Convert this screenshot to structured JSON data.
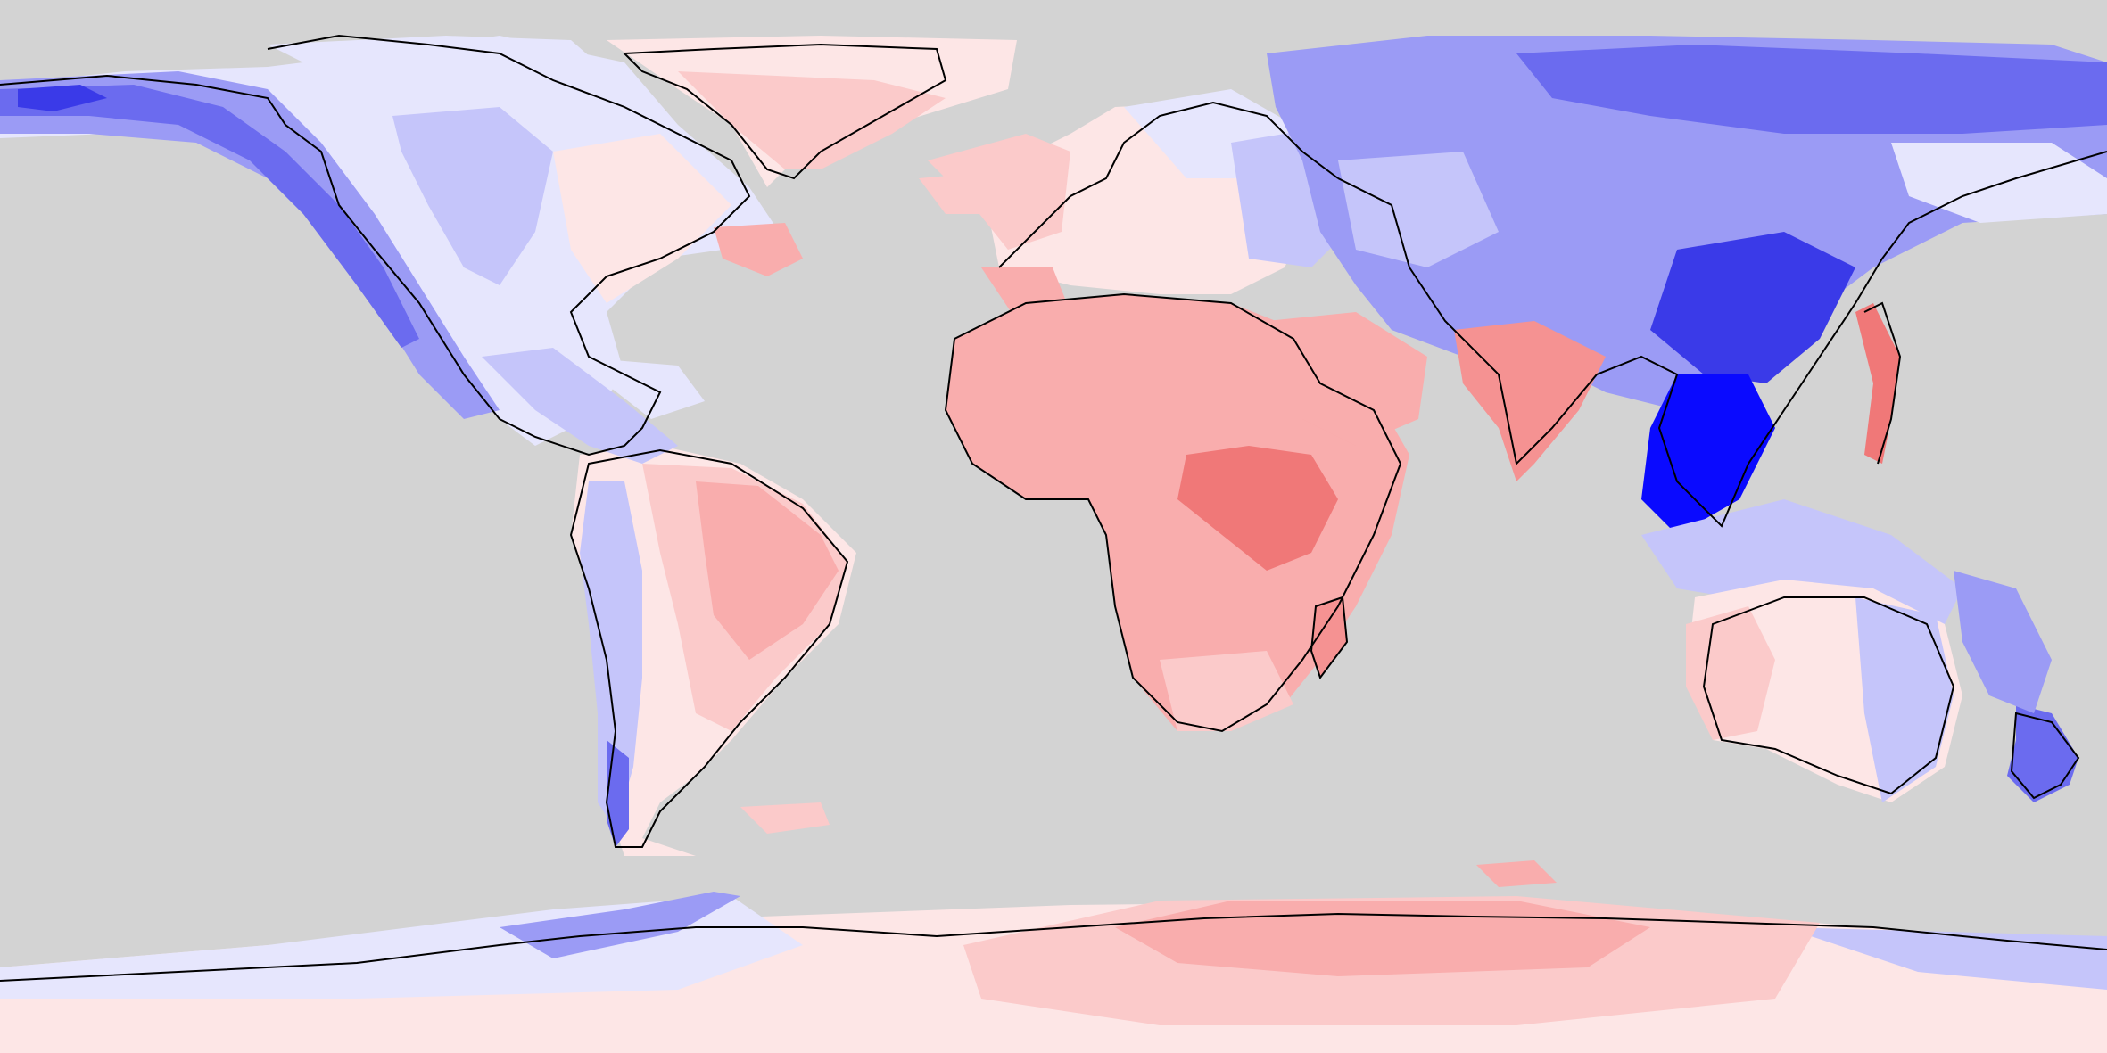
{
  "map": {
    "projection": "equirectangular",
    "ocean_color": "#d3d3d3",
    "coastline_color": "#000000",
    "palette": {
      "blue_5": "#0a0aff",
      "blue_4": "#3a3ae8",
      "blue_3": "#6b6bef",
      "blue_2": "#9b9bf5",
      "blue_1": "#c5c5fa",
      "blue_0": "#e6e6fd",
      "red_0": "#fde6e6",
      "red_1": "#fbcaca",
      "red_2": "#f9adad",
      "red_3": "#f59292",
      "red_4": "#f07878"
    }
  }
}
